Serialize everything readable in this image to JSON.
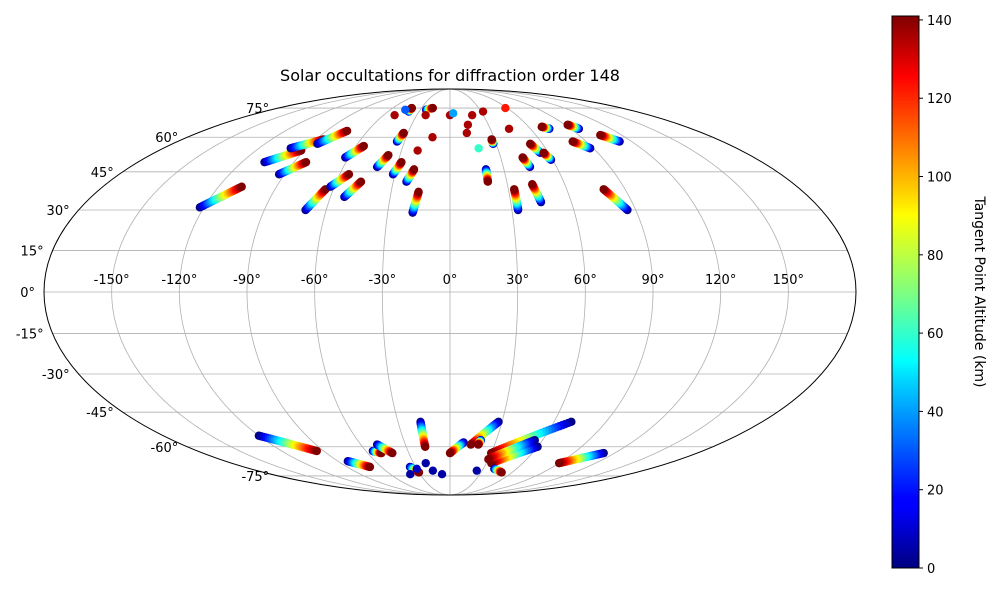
{
  "chart_data": {
    "type": "scatter",
    "projection": "mollweide",
    "title": "Solar occultations for diffraction order 148",
    "longitude_tick_labels": [
      "-150°",
      "-120°",
      "-90°",
      "-60°",
      "-30°",
      "0°",
      "30°",
      "60°",
      "90°",
      "120°",
      "150°"
    ],
    "longitude_ticks": [
      -150,
      -120,
      -90,
      -60,
      -30,
      0,
      30,
      60,
      90,
      120,
      150
    ],
    "latitude_tick_labels": [
      "-75°",
      "-60°",
      "-45°",
      "-30°",
      "-15°",
      "0°",
      "15°",
      "30°",
      "45°",
      "60°",
      "75°"
    ],
    "latitude_ticks": [
      -75,
      -60,
      -45,
      -30,
      -15,
      0,
      15,
      30,
      45,
      60,
      75
    ],
    "grid": true,
    "colorbar": {
      "label": "Tangent Point Altitude (km)",
      "colormap": "jet",
      "range": [
        0,
        141
      ],
      "tick_labels": [
        "0",
        "20",
        "40",
        "60",
        "80",
        "100",
        "120",
        "140"
      ],
      "ticks": [
        0,
        20,
        40,
        60,
        80,
        100,
        120,
        140
      ],
      "position": "right"
    },
    "tracks_note": "each track runs from altitude 0 km at [lon0,lat0] to 141 km at [lon1,lat1]",
    "tracks": [
      {
        "lon0": -122,
        "lat0": 31,
        "lon1": -108,
        "lat1": 39
      },
      {
        "lon0": -107,
        "lat0": 49,
        "lon1": -92,
        "lat1": 54
      },
      {
        "lon0": -100,
        "lat0": 55,
        "lon1": -85,
        "lat1": 59
      },
      {
        "lon0": -93,
        "lat0": 44,
        "lon1": -83,
        "lat1": 49
      },
      {
        "lon0": -86,
        "lat0": 57,
        "lon1": -75,
        "lat1": 63
      },
      {
        "lon0": -70,
        "lat0": 30,
        "lon1": -64,
        "lat1": 38
      },
      {
        "lon0": -62,
        "lat0": 39,
        "lon1": -55,
        "lat1": 44
      },
      {
        "lon0": -62,
        "lat0": 51,
        "lon1": -55,
        "lat1": 56
      },
      {
        "lon0": -53,
        "lat0": 35,
        "lon1": -47,
        "lat1": 41
      },
      {
        "lon0": -41,
        "lat0": 47,
        "lon1": -37,
        "lat1": 52
      },
      {
        "lon0": -35,
        "lat0": 58,
        "lon1": -33,
        "lat1": 62
      },
      {
        "lon0": -31,
        "lat0": 44,
        "lon1": -28,
        "lat1": 49
      },
      {
        "lon0": -23,
        "lat0": 41,
        "lon1": -20,
        "lat1": 46
      },
      {
        "lon0": -18,
        "lat0": 29,
        "lon1": -16,
        "lat1": 37
      },
      {
        "lon0": -40,
        "lat0": 73,
        "lon1": -40,
        "lat1": 75
      },
      {
        "lon0": -24,
        "lat0": 74,
        "lon1": -18,
        "lat1": 75
      },
      {
        "lon0": 20,
        "lat0": 46,
        "lon1": 20,
        "lat1": 41
      },
      {
        "lon0": 33,
        "lat0": 30,
        "lon1": 33,
        "lat1": 38
      },
      {
        "lon0": 28,
        "lat0": 57,
        "lon1": 28,
        "lat1": 59
      },
      {
        "lon0": 45,
        "lat0": 47,
        "lon1": 43,
        "lat1": 51
      },
      {
        "lon0": 45,
        "lat0": 33,
        "lon1": 43,
        "lat1": 40
      },
      {
        "lon0": 55,
        "lat0": 53,
        "lon1": 52,
        "lat1": 57
      },
      {
        "lon0": 59,
        "lat0": 50,
        "lon1": 57,
        "lat1": 53
      },
      {
        "lon0": 86,
        "lat0": 30,
        "lon1": 79,
        "lat1": 38
      },
      {
        "lon0": 88,
        "lat0": 55,
        "lon1": 81,
        "lat1": 58
      },
      {
        "lon0": 112,
        "lat0": 58,
        "lon1": 105,
        "lat1": 61
      },
      {
        "lon0": 96,
        "lat0": 64,
        "lon1": 92,
        "lat1": 66
      },
      {
        "lon0": 74,
        "lat0": 64,
        "lon1": 70,
        "lat1": 65
      },
      {
        "lon0": -120,
        "lat0": -55,
        "lon1": -95,
        "lat1": -62
      },
      {
        "lon0": -82,
        "lat0": -67,
        "lon1": -70,
        "lat1": -70
      },
      {
        "lon0": -55,
        "lat0": -62,
        "lon1": -50,
        "lat1": -63
      },
      {
        "lon0": -49,
        "lat0": -59,
        "lon1": -42,
        "lat1": -63
      },
      {
        "lon0": -35,
        "lat0": -70,
        "lon1": -30,
        "lat1": -73
      },
      {
        "lon0": -17,
        "lat0": -49,
        "lon1": -17,
        "lat1": -60
      },
      {
        "lon0": 9,
        "lat0": -58,
        "lon1": 0,
        "lat1": -63
      },
      {
        "lon0": 28,
        "lat0": -49,
        "lon1": 14,
        "lat1": -59
      },
      {
        "lon0": 20,
        "lat0": -57,
        "lon1": 19,
        "lat1": -59
      },
      {
        "lon0": 70,
        "lat0": -49,
        "lon1": 30,
        "lat1": -63
      },
      {
        "lon0": 60,
        "lat0": -60,
        "lon1": 34,
        "lat1": -68
      },
      {
        "lon0": 55,
        "lat0": -57,
        "lon1": 30,
        "lat1": -66
      },
      {
        "lon0": 112,
        "lat0": -63,
        "lon1": 90,
        "lat1": -68
      },
      {
        "lon0": 40,
        "lat0": -71,
        "lon1": 50,
        "lat1": -73
      }
    ],
    "points_note": "isolated occultation markers",
    "points": [
      {
        "lon": -50,
        "lat": 71,
        "alt": 135
      },
      {
        "lon": -45,
        "lat": 74,
        "alt": 30
      },
      {
        "lon": -22,
        "lat": 71,
        "alt": 135
      },
      {
        "lon": 0,
        "lat": 71,
        "alt": 135
      },
      {
        "lon": 3,
        "lat": 72,
        "alt": 40
      },
      {
        "lon": 14,
        "lat": 66,
        "alt": 135
      },
      {
        "lon": 20,
        "lat": 71,
        "alt": 135
      },
      {
        "lon": 32,
        "lat": 73,
        "alt": 135
      },
      {
        "lon": 44,
        "lat": 64,
        "alt": 135
      },
      {
        "lon": 58,
        "lat": 75,
        "alt": 120
      },
      {
        "lon": -12,
        "lat": 60,
        "alt": 135
      },
      {
        "lon": 12,
        "lat": 62,
        "alt": 135
      },
      {
        "lon": -20,
        "lat": 54,
        "alt": 135
      },
      {
        "lon": 18,
        "lat": 55,
        "alt": 60
      },
      {
        "lon": -30,
        "lat": -71,
        "alt": 10
      },
      {
        "lon": -20,
        "lat": -68,
        "alt": 5
      },
      {
        "lon": -16,
        "lat": -72,
        "alt": 5
      },
      {
        "lon": 25,
        "lat": -72,
        "alt": 5
      },
      {
        "lon": -40,
        "lat": -74,
        "alt": 5
      },
      {
        "lon": -8,
        "lat": -74,
        "alt": 5
      }
    ]
  }
}
